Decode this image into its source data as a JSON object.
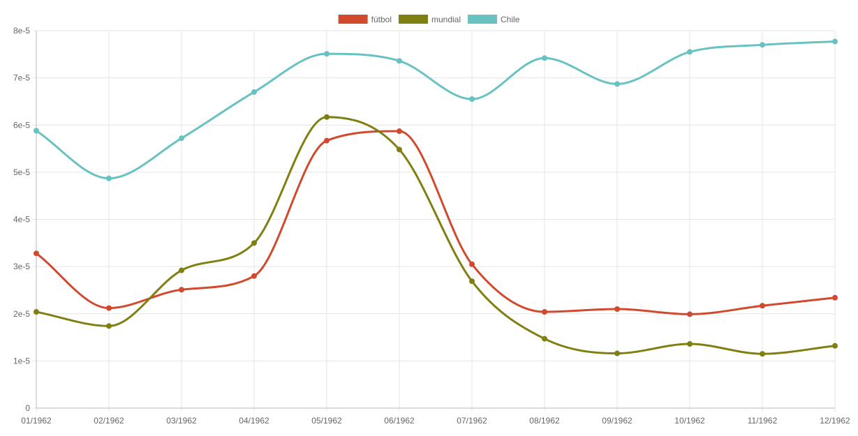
{
  "chart_data": {
    "type": "line",
    "title": "",
    "xlabel": "",
    "ylabel": "",
    "categories": [
      "01/1962",
      "02/1962",
      "03/1962",
      "04/1962",
      "05/1962",
      "06/1962",
      "07/1962",
      "08/1962",
      "09/1962",
      "10/1962",
      "11/1962",
      "12/1962"
    ],
    "y_ticks": [
      "0",
      "1e-5",
      "2e-5",
      "3e-5",
      "4e-5",
      "5e-5",
      "6e-5",
      "7e-5",
      "8e-5"
    ],
    "ylim": [
      0,
      8e-05
    ],
    "grid": true,
    "legend_position": "top-center",
    "curve": "smooth",
    "series": [
      {
        "name": "fútbol",
        "color": "#d14a2e",
        "values": [
          3.28e-05,
          2.12e-05,
          2.51e-05,
          2.8e-05,
          5.67e-05,
          5.87e-05,
          3.05e-05,
          2.04e-05,
          2.1e-05,
          1.99e-05,
          2.17e-05,
          2.34e-05
        ]
      },
      {
        "name": "mundial",
        "color": "#7f7f12",
        "values": [
          2.04e-05,
          1.74e-05,
          2.92e-05,
          3.5e-05,
          6.17e-05,
          5.48e-05,
          2.69e-05,
          1.47e-05,
          1.16e-05,
          1.36e-05,
          1.15e-05,
          1.32e-05
        ]
      },
      {
        "name": "Chile",
        "color": "#68c2c2",
        "values": [
          5.88e-05,
          4.87e-05,
          5.72e-05,
          6.7e-05,
          7.51e-05,
          7.36e-05,
          6.55e-05,
          7.42e-05,
          6.87e-05,
          7.55e-05,
          7.7e-05,
          7.77e-05
        ]
      }
    ]
  }
}
